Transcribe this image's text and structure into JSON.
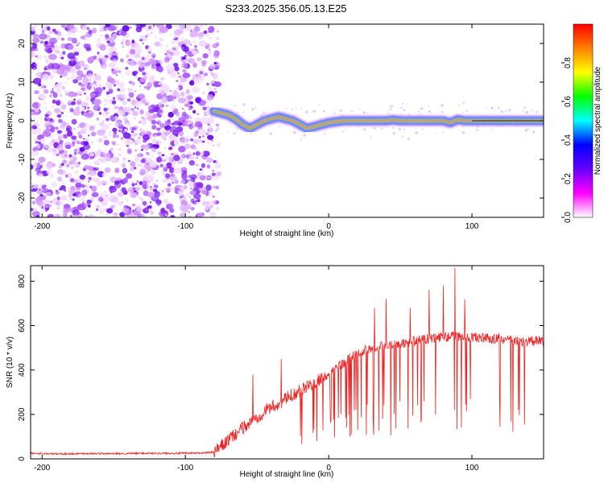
{
  "title": "S233.2025.356.05.13.E25",
  "chart_data": [
    {
      "type": "heatmap",
      "name": "spectrogram",
      "xlabel": "Height of straight line (km)",
      "ylabel": "Frequency (Hz)",
      "xlim": [
        -208,
        150
      ],
      "ylim": [
        -25,
        25
      ],
      "xticks": [
        -200,
        -100,
        0,
        100
      ],
      "xtick_labels": [
        "-200",
        "-100",
        "0",
        "100"
      ],
      "yticks": [
        -20,
        -10,
        0,
        10,
        20
      ],
      "ytick_labels": [
        "-20",
        "-10",
        "0",
        "10",
        "20"
      ],
      "noise_region_x": [
        -208,
        -80
      ],
      "signal_line": {
        "x": [
          -80,
          -75,
          -70,
          -65,
          -60,
          -55,
          -50,
          -45,
          -40,
          -35,
          -30,
          -25,
          -20,
          -15,
          -10,
          -5,
          0,
          10,
          20,
          30,
          40,
          45,
          50,
          60,
          70,
          75,
          80,
          85,
          90,
          95,
          100,
          110,
          120,
          130,
          140,
          150
        ],
        "freq": [
          2.5,
          2.0,
          1.5,
          0.5,
          -1.0,
          -2.0,
          -1.0,
          0.0,
          0.5,
          1.0,
          0.5,
          0.0,
          -1.0,
          -2.0,
          -1.5,
          -1.0,
          -0.5,
          0.0,
          0.0,
          0.0,
          0.0,
          0.2,
          0.0,
          0.0,
          0.0,
          0.0,
          0.0,
          -0.5,
          0.3,
          0.0,
          0.0,
          0.0,
          0.0,
          0.0,
          0.0,
          0.0
        ]
      },
      "colorbar": {
        "label": "Normalized spectral amplitude",
        "range": [
          0,
          1
        ],
        "ticks": [
          0.0,
          0.2,
          0.4,
          0.6,
          0.8
        ],
        "tick_labels": [
          "0.0",
          "0.2",
          "0.4",
          "0.6",
          "0.8"
        ],
        "colors": [
          "#ffffff",
          "#ff00ff",
          "#6600ff",
          "#0000ff",
          "#00ffff",
          "#00ff00",
          "#ffff00",
          "#ff8000",
          "#ff0000"
        ]
      }
    },
    {
      "type": "line",
      "name": "snr",
      "xlabel": "Height of straight line (km)",
      "ylabel": "SNR (10 * v/v)",
      "xlim": [
        -208,
        150
      ],
      "ylim": [
        0,
        870
      ],
      "xticks": [
        -200,
        -100,
        0,
        100
      ],
      "xtick_labels": [
        "-200",
        "-100",
        "0",
        "100"
      ],
      "yticks": [
        0,
        200,
        400,
        600,
        800
      ],
      "ytick_labels": [
        "0",
        "200",
        "400",
        "600",
        "800"
      ],
      "color": "#ee2222",
      "x": [
        -208,
        -190,
        -170,
        -150,
        -130,
        -110,
        -90,
        -80,
        -75,
        -70,
        -65,
        -60,
        -55,
        -50,
        -45,
        -40,
        -35,
        -30,
        -25,
        -20,
        -15,
        -10,
        -5,
        0,
        5,
        10,
        15,
        20,
        25,
        30,
        35,
        40,
        45,
        50,
        55,
        60,
        65,
        70,
        75,
        80,
        85,
        90,
        95,
        100,
        105,
        110,
        115,
        120,
        125,
        130,
        135,
        140,
        145,
        150
      ],
      "baseline": [
        25,
        22,
        24,
        23,
        25,
        25,
        26,
        30,
        55,
        85,
        110,
        140,
        160,
        185,
        215,
        235,
        245,
        270,
        290,
        305,
        325,
        345,
        365,
        385,
        410,
        430,
        455,
        470,
        490,
        500,
        505,
        515,
        515,
        520,
        525,
        530,
        535,
        540,
        545,
        548,
        550,
        552,
        550,
        548,
        545,
        542,
        540,
        540,
        535,
        530,
        528,
        530,
        530,
        530
      ],
      "spikes": [
        {
          "x": -53,
          "snr": 380
        },
        {
          "x": -33,
          "snr": 450
        },
        {
          "x": 32,
          "snr": 680
        },
        {
          "x": 40,
          "snr": 720
        },
        {
          "x": 57,
          "snr": 680
        },
        {
          "x": 70,
          "snr": 760
        },
        {
          "x": 80,
          "snr": 780
        },
        {
          "x": 88,
          "snr": 860
        },
        {
          "x": 95,
          "snr": 720
        }
      ]
    }
  ]
}
